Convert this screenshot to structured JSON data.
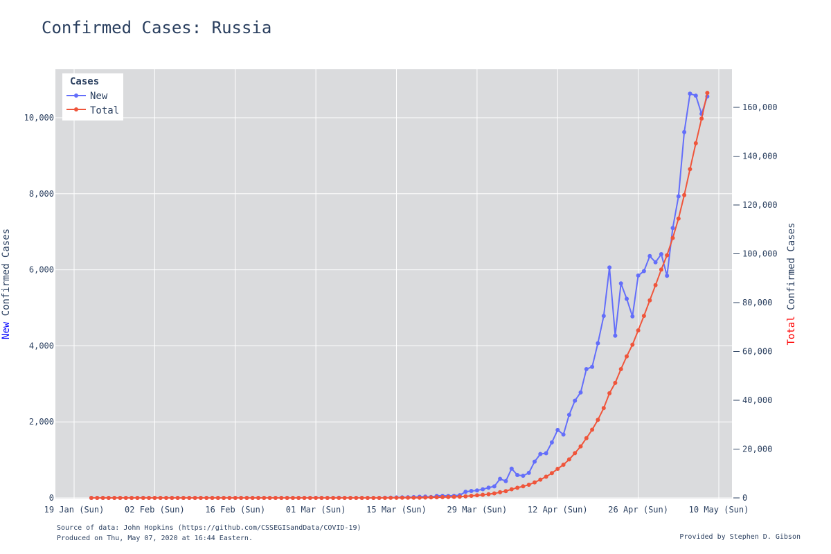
{
  "title": "Confirmed Cases: Russia",
  "source_line1": "Source of data: John Hopkins (https://github.com/CSSEGISandData/COVID-19)",
  "source_line2": "Produced on Thu, May 07, 2020 at 16:44 Eastern.",
  "credit": "Provided by Stephen D. Gibson",
  "chart_data": {
    "type": "line",
    "title": "Confirmed Cases: Russia",
    "y_left_label_part1": "New",
    "y_left_label_part2": " Confirmed Cases",
    "y_right_label_part1": "Total",
    "y_right_label_part2": " Confirmed Cases",
    "legend_title": "Cases",
    "legend_position": "top-left",
    "grid": true,
    "colors": {
      "new": "#636efa",
      "total": "#ef553b",
      "plot_bg": "#dadbdd",
      "left_label_accent": "#0000ff",
      "right_label_accent": "#ff0000"
    },
    "x_start": "2020-01-22",
    "x_ticks": [
      "19 Jan (Sun)",
      "02 Feb (Sun)",
      "16 Feb (Sun)",
      "01 Mar (Sun)",
      "15 Mar (Sun)",
      "29 Mar (Sun)",
      "12 Apr (Sun)",
      "26 Apr (Sun)",
      "10 May (Sun)"
    ],
    "x_range": [
      "2020-01-19",
      "2020-05-10"
    ],
    "y_left_ticks": [
      "0",
      "2,000",
      "4,000",
      "6,000",
      "8,000",
      "10,000"
    ],
    "y_left_range": [
      0,
      10000
    ],
    "y_right_ticks": [
      "0",
      "20,000",
      "40,000",
      "60,000",
      "80,000",
      "100,000",
      "120,000",
      "140,000",
      "160,000"
    ],
    "y_right_range": [
      0,
      160000
    ],
    "series": [
      {
        "name": "New",
        "axis": "left",
        "values": [
          0,
          0,
          0,
          0,
          0,
          0,
          0,
          0,
          0,
          2,
          0,
          0,
          0,
          0,
          0,
          0,
          0,
          0,
          0,
          0,
          0,
          0,
          0,
          0,
          0,
          0,
          0,
          0,
          0,
          0,
          0,
          0,
          0,
          0,
          0,
          0,
          0,
          0,
          0,
          1,
          0,
          0,
          0,
          3,
          0,
          0,
          0,
          0,
          0,
          0,
          0,
          3,
          7,
          11,
          14,
          17,
          20,
          30,
          35,
          22,
          52,
          54,
          53,
          57,
          71,
          163,
          182,
          196,
          228,
          270,
          302,
          501,
          440,
          771,
          601,
          582,
          658,
          954,
          1154,
          1175,
          1459,
          1786,
          1667,
          2186,
          2558,
          2774,
          3388,
          3448,
          4070,
          4785,
          6060,
          4268,
          5642,
          5236,
          4774,
          5849,
          5966,
          6361,
          6198,
          6411,
          5841,
          7099,
          7933,
          9623,
          10633,
          10581,
          10102,
          10559
        ]
      },
      {
        "name": "Total",
        "axis": "right",
        "values": [
          0,
          0,
          0,
          0,
          0,
          0,
          0,
          0,
          0,
          2,
          2,
          2,
          2,
          2,
          2,
          2,
          2,
          2,
          2,
          2,
          2,
          2,
          2,
          2,
          2,
          2,
          2,
          2,
          2,
          2,
          2,
          2,
          2,
          2,
          2,
          2,
          2,
          2,
          2,
          3,
          3,
          3,
          3,
          6,
          6,
          6,
          6,
          6,
          6,
          6,
          6,
          10,
          17,
          28,
          45,
          59,
          63,
          90,
          147,
          199,
          253,
          306,
          367,
          438,
          495,
          658,
          840,
          1036,
          1264,
          1534,
          1836,
          2337,
          2777,
          3548,
          4149,
          4731,
          5389,
          6343,
          7497,
          8672,
          10131,
          11917,
          13584,
          15770,
          18328,
          21102,
          24490,
          27938,
          32008,
          36793,
          42853,
          47121,
          52763,
          57999,
          62773,
          68622,
          74588,
          80949,
          87147,
          93558,
          99399,
          106498,
          114431,
          124054,
          134687,
          145268,
          155370,
          165929
        ]
      }
    ]
  }
}
